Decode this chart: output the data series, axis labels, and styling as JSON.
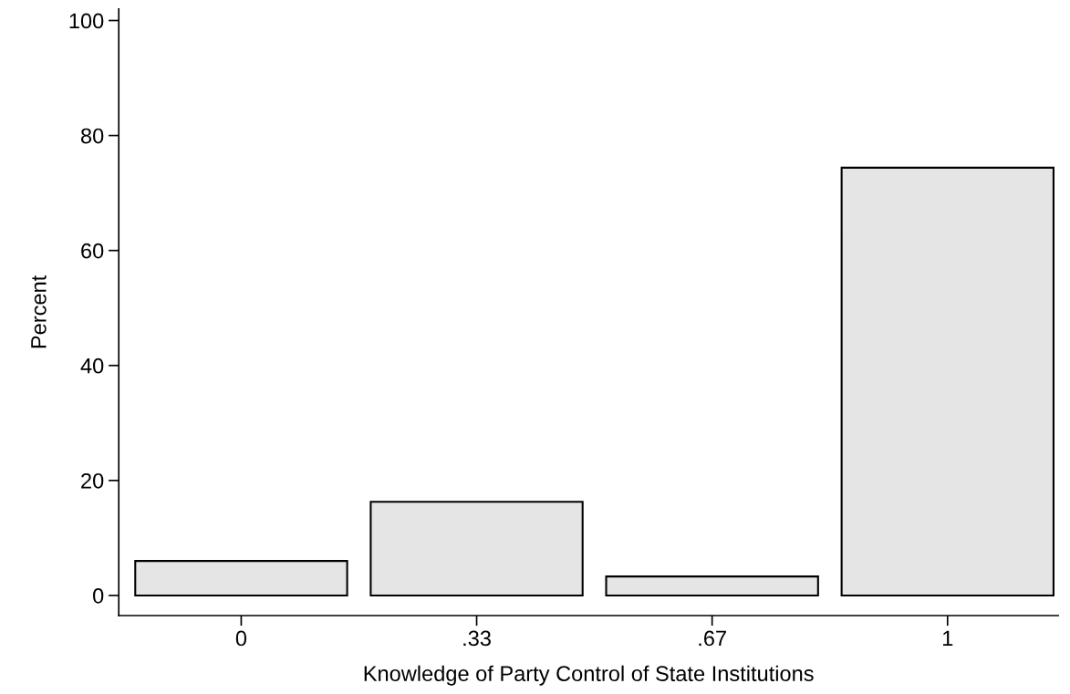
{
  "chart_data": {
    "type": "bar",
    "xlabel": "Knowledge of Party Control of State Institutions",
    "ylabel": "Percent",
    "categories": [
      "0",
      ".33",
      ".67",
      "1"
    ],
    "values": [
      6.0,
      16.3,
      3.3,
      74.4
    ],
    "color": "#e5e5e5",
    "ylim": [
      -3.5,
      102
    ],
    "yticks": [
      0,
      20,
      40,
      60,
      80,
      100
    ],
    "grid": false
  }
}
